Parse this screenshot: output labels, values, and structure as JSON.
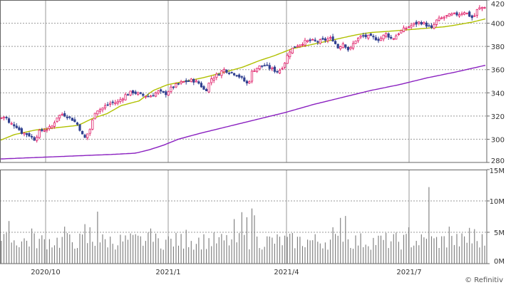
{
  "source_label": "© Refinitiv",
  "chart_data": [
    {
      "type": "candlestick",
      "ylim": [
        280,
        420
      ],
      "y_ticks": [
        280,
        300,
        320,
        340,
        360,
        380,
        400,
        420
      ],
      "x_tick_labels": [
        "2020/10",
        "2021/1",
        "2021/4",
        "2021/7"
      ],
      "colors": {
        "up": "#e0206a",
        "down": "#304090",
        "ma_short": "#b0c000",
        "ma_long": "#8a20c0",
        "grid": "#999999",
        "frame": "#666666"
      },
      "ma_short_anchors": [
        [
          0,
          299
        ],
        [
          20,
          304
        ],
        [
          50,
          308
        ],
        [
          80,
          310
        ],
        [
          110,
          312
        ],
        [
          130,
          318
        ],
        [
          150,
          322
        ],
        [
          170,
          329
        ],
        [
          195,
          333
        ],
        [
          215,
          342
        ],
        [
          235,
          347
        ],
        [
          260,
          350
        ],
        [
          285,
          353
        ],
        [
          310,
          357
        ],
        [
          340,
          362
        ],
        [
          365,
          368
        ],
        [
          385,
          372
        ],
        [
          410,
          378
        ],
        [
          440,
          382
        ],
        [
          470,
          386
        ],
        [
          500,
          390
        ],
        [
          520,
          392
        ],
        [
          545,
          393
        ],
        [
          565,
          394
        ],
        [
          585,
          395
        ],
        [
          605,
          396
        ],
        [
          625,
          397
        ],
        [
          645,
          399
        ],
        [
          663,
          401
        ],
        [
          683,
          404
        ]
      ],
      "ma_long_anchors": [
        [
          0,
          283
        ],
        [
          40,
          284
        ],
        [
          80,
          285
        ],
        [
          120,
          286
        ],
        [
          160,
          287
        ],
        [
          190,
          288
        ],
        [
          210,
          291
        ],
        [
          230,
          295
        ],
        [
          250,
          300
        ],
        [
          280,
          305
        ],
        [
          320,
          311
        ],
        [
          360,
          317
        ],
        [
          400,
          323
        ],
        [
          440,
          330
        ],
        [
          480,
          336
        ],
        [
          520,
          342
        ],
        [
          560,
          347
        ],
        [
          600,
          353
        ],
        [
          640,
          358
        ],
        [
          683,
          364
        ],
        [
          710,
          370
        ]
      ],
      "candle_anchors": [
        [
          0,
          318
        ],
        [
          8,
          320
        ],
        [
          12,
          314
        ],
        [
          22,
          312
        ],
        [
          30,
          306
        ],
        [
          40,
          304
        ],
        [
          48,
          300
        ],
        [
          56,
          307
        ],
        [
          66,
          309
        ],
        [
          72,
          310
        ],
        [
          80,
          319
        ],
        [
          88,
          322
        ],
        [
          100,
          318
        ],
        [
          110,
          312
        ],
        [
          118,
          300
        ],
        [
          126,
          308
        ],
        [
          134,
          325
        ],
        [
          142,
          326
        ],
        [
          154,
          331
        ],
        [
          165,
          332
        ],
        [
          176,
          338
        ],
        [
          186,
          341
        ],
        [
          198,
          338
        ],
        [
          210,
          337
        ],
        [
          222,
          341
        ],
        [
          232,
          339
        ],
        [
          242,
          345
        ],
        [
          255,
          349
        ],
        [
          270,
          351
        ],
        [
          280,
          348
        ],
        [
          288,
          341
        ],
        [
          296,
          352
        ],
        [
          306,
          356
        ],
        [
          314,
          360
        ],
        [
          322,
          358
        ],
        [
          332,
          356
        ],
        [
          340,
          352
        ],
        [
          348,
          347
        ],
        [
          354,
          359
        ],
        [
          362,
          362
        ],
        [
          370,
          364
        ],
        [
          380,
          361
        ],
        [
          390,
          358
        ],
        [
          398,
          364
        ],
        [
          406,
          376
        ],
        [
          414,
          380
        ],
        [
          424,
          383
        ],
        [
          434,
          385
        ],
        [
          446,
          384
        ],
        [
          458,
          386
        ],
        [
          466,
          387
        ],
        [
          474,
          379
        ],
        [
          482,
          383
        ],
        [
          490,
          376
        ],
        [
          498,
          385
        ],
        [
          508,
          389
        ],
        [
          520,
          388
        ],
        [
          532,
          386
        ],
        [
          542,
          391
        ],
        [
          550,
          386
        ],
        [
          560,
          392
        ],
        [
          570,
          396
        ],
        [
          580,
          399
        ],
        [
          590,
          401
        ],
        [
          600,
          398
        ],
        [
          606,
          395
        ],
        [
          612,
          402
        ],
        [
          622,
          405
        ],
        [
          632,
          407
        ],
        [
          644,
          408
        ],
        [
          652,
          410
        ],
        [
          658,
          407
        ],
        [
          664,
          404
        ],
        [
          670,
          412
        ],
        [
          678,
          414
        ],
        [
          683,
          415
        ]
      ]
    },
    {
      "type": "bar",
      "ylim": [
        0,
        15
      ],
      "y_ticks": [
        0,
        5,
        10,
        15
      ],
      "y_tick_labels": [
        "0M",
        "5M",
        "10M",
        "15M"
      ],
      "peaks": [
        [
          12,
          6.8
        ],
        [
          44,
          5.6
        ],
        [
          90,
          5.9
        ],
        [
          118,
          6.3
        ],
        [
          126,
          5.8
        ],
        [
          136,
          8.3
        ],
        [
          212,
          5.6
        ],
        [
          260,
          5.4
        ],
        [
          284,
          5.9
        ],
        [
          330,
          7.1
        ],
        [
          338,
          8.2
        ],
        [
          346,
          7.4
        ],
        [
          352,
          8.8
        ],
        [
          358,
          7.7
        ],
        [
          466,
          5.8
        ],
        [
          478,
          7.3
        ],
        [
          484,
          7.6
        ],
        [
          574,
          5.8
        ],
        [
          600,
          5.4
        ],
        [
          602,
          12.2
        ],
        [
          630,
          5.9
        ],
        [
          660,
          5.7
        ],
        [
          666,
          5.5
        ],
        [
          678,
          4.8
        ]
      ]
    }
  ]
}
